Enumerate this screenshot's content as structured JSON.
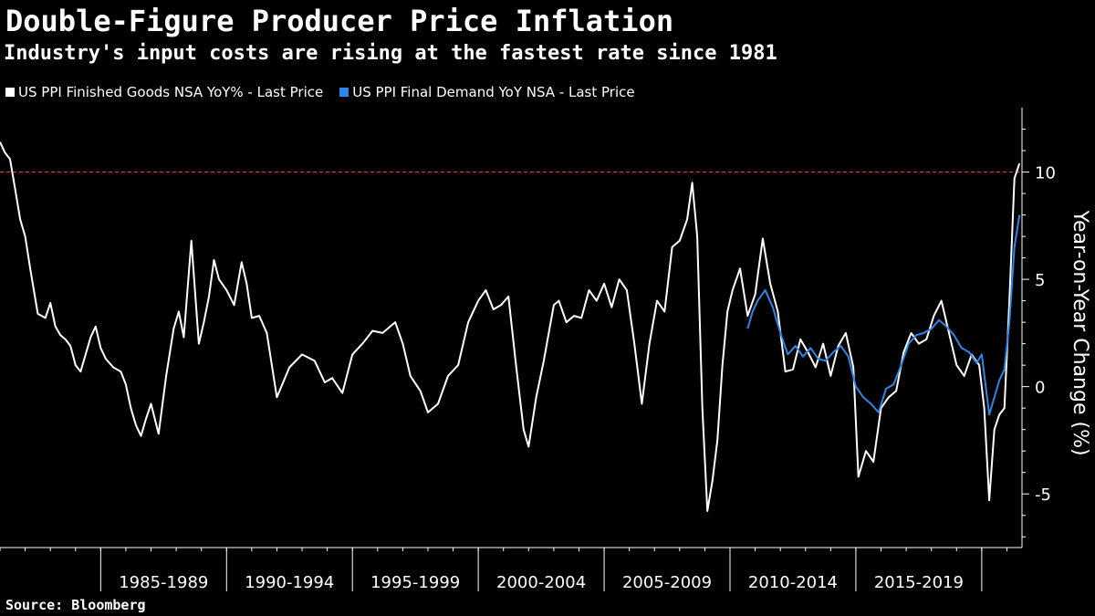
{
  "title": "Double-Figure Producer Price Inflation",
  "subtitle": "Industry's input costs are rising at the fastest rate since 1981",
  "source": "Source: Bloomberg",
  "colors": {
    "background": "#000000",
    "finished_goods": "#ffffff",
    "final_demand": "#2f86e8",
    "threshold": "#e23b3b"
  },
  "chart_data": {
    "type": "line",
    "title": "Double-Figure Producer Price Inflation",
    "subtitle": "Industry's input costs are rising at the fastest rate since 1981",
    "ylabel": "Year-on-Year Change (%)",
    "ylim": [
      -7.5,
      13
    ],
    "xlim": [
      1981.0,
      2021.6
    ],
    "yticks": [
      -5,
      0,
      5,
      10
    ],
    "x_categories": [
      "1985-1989",
      "1990-1994",
      "1995-1999",
      "2000-2004",
      "2005-2009",
      "2010-2014",
      "2015-2019"
    ],
    "reference_line": {
      "y": 10,
      "style": "dashed"
    },
    "grid": false,
    "legend_position": "top-left",
    "series": [
      {
        "name": "US PPI Finished Goods NSA YoY% - Last Price",
        "x": [
          1981.0,
          1981.2,
          1981.4,
          1981.6,
          1981.8,
          1982.0,
          1982.2,
          1982.5,
          1982.8,
          1983.0,
          1983.2,
          1983.4,
          1983.6,
          1983.8,
          1984.0,
          1984.2,
          1984.4,
          1984.6,
          1984.8,
          1985.0,
          1985.2,
          1985.5,
          1985.8,
          1986.0,
          1986.2,
          1986.4,
          1986.6,
          1986.8,
          1987.0,
          1987.3,
          1987.6,
          1987.9,
          1988.1,
          1988.3,
          1988.6,
          1988.9,
          1989.1,
          1989.3,
          1989.5,
          1989.7,
          1990.0,
          1990.3,
          1990.6,
          1990.8,
          1991.0,
          1991.3,
          1991.6,
          1992.0,
          1992.5,
          1993.0,
          1993.5,
          1993.9,
          1994.2,
          1994.6,
          1995.0,
          1995.4,
          1995.8,
          1996.2,
          1996.7,
          1997.0,
          1997.3,
          1997.7,
          1998.0,
          1998.4,
          1998.8,
          1999.2,
          1999.6,
          2000.0,
          2000.3,
          2000.6,
          2000.9,
          2001.2,
          2001.5,
          2001.8,
          2002.0,
          2002.3,
          2002.6,
          2003.0,
          2003.2,
          2003.5,
          2003.8,
          2004.1,
          2004.4,
          2004.7,
          2005.0,
          2005.3,
          2005.6,
          2005.9,
          2006.2,
          2006.5,
          2006.8,
          2007.1,
          2007.4,
          2007.7,
          2008.0,
          2008.3,
          2008.5,
          2008.7,
          2008.9,
          2009.1,
          2009.3,
          2009.5,
          2009.7,
          2009.9,
          2010.1,
          2010.4,
          2010.7,
          2011.0,
          2011.3,
          2011.6,
          2011.9,
          2012.2,
          2012.5,
          2012.8,
          2013.1,
          2013.4,
          2013.7,
          2014.0,
          2014.3,
          2014.6,
          2014.9,
          2015.1,
          2015.4,
          2015.7,
          2016.0,
          2016.3,
          2016.6,
          2016.9,
          2017.2,
          2017.5,
          2017.8,
          2018.1,
          2018.4,
          2018.7,
          2019.0,
          2019.3,
          2019.6,
          2019.9,
          2020.1,
          2020.3,
          2020.5,
          2020.7,
          2020.9,
          2021.1,
          2021.3,
          2021.5
        ],
        "values": [
          11.4,
          10.9,
          10.6,
          9.2,
          7.8,
          7.0,
          5.5,
          3.4,
          3.2,
          3.9,
          2.8,
          2.4,
          2.2,
          1.9,
          1.0,
          0.7,
          1.5,
          2.3,
          2.8,
          1.8,
          1.3,
          0.9,
          0.7,
          0.1,
          -1.0,
          -1.8,
          -2.3,
          -1.5,
          -0.8,
          -2.2,
          0.5,
          2.7,
          3.5,
          2.3,
          6.8,
          2.0,
          3.0,
          4.2,
          5.9,
          5.0,
          4.5,
          3.8,
          5.8,
          4.8,
          3.2,
          3.3,
          2.5,
          -0.5,
          0.9,
          1.5,
          1.2,
          0.2,
          0.4,
          -0.3,
          1.5,
          2.0,
          2.6,
          2.5,
          3.0,
          2.0,
          0.5,
          -0.2,
          -1.2,
          -0.8,
          0.5,
          1.0,
          3.0,
          4.0,
          4.5,
          3.6,
          3.8,
          4.2,
          1.0,
          -2.0,
          -2.8,
          -0.5,
          1.2,
          3.8,
          4.0,
          3.0,
          3.3,
          3.2,
          4.5,
          4.0,
          4.8,
          3.7,
          5.0,
          4.5,
          2.0,
          -0.8,
          2.0,
          4.0,
          3.5,
          6.5,
          6.8,
          7.8,
          9.5,
          7.0,
          -1.0,
          -5.8,
          -4.4,
          -2.5,
          1.0,
          3.5,
          4.5,
          5.5,
          3.3,
          4.3,
          6.9,
          4.8,
          3.5,
          0.7,
          0.8,
          2.2,
          1.6,
          0.9,
          2.0,
          0.5,
          1.9,
          2.5,
          0.9,
          -4.2,
          -3.0,
          -3.5,
          -1.0,
          -0.5,
          -0.2,
          1.6,
          2.5,
          2.0,
          2.2,
          3.3,
          4.0,
          2.5,
          1.0,
          0.5,
          1.5,
          1.0,
          -1.0,
          -5.3,
          -2.0,
          -1.3,
          -1.0,
          4.0,
          9.7,
          10.4
        ]
      },
      {
        "name": "US PPI Final Demand YoY NSA - Last Price",
        "x": [
          2010.7,
          2010.9,
          2011.1,
          2011.4,
          2011.7,
          2012.0,
          2012.3,
          2012.6,
          2012.9,
          2013.2,
          2013.5,
          2013.8,
          2014.1,
          2014.4,
          2014.7,
          2015.0,
          2015.3,
          2015.6,
          2015.9,
          2016.2,
          2016.5,
          2016.8,
          2017.1,
          2017.4,
          2017.7,
          2018.0,
          2018.3,
          2018.6,
          2018.9,
          2019.2,
          2019.5,
          2019.8,
          2020.0,
          2020.3,
          2020.5,
          2020.7,
          2020.9,
          2021.1,
          2021.3,
          2021.5
        ],
        "values": [
          2.7,
          3.5,
          4.0,
          4.5,
          3.7,
          2.5,
          1.5,
          1.9,
          1.4,
          1.8,
          1.3,
          1.2,
          1.6,
          1.9,
          1.4,
          0.0,
          -0.5,
          -0.8,
          -1.2,
          -0.1,
          0.1,
          1.0,
          2.0,
          2.4,
          2.5,
          2.7,
          3.1,
          2.8,
          2.4,
          1.8,
          1.6,
          1.1,
          1.5,
          -1.3,
          -0.5,
          0.3,
          0.8,
          3.0,
          6.5,
          8.0
        ]
      }
    ]
  }
}
